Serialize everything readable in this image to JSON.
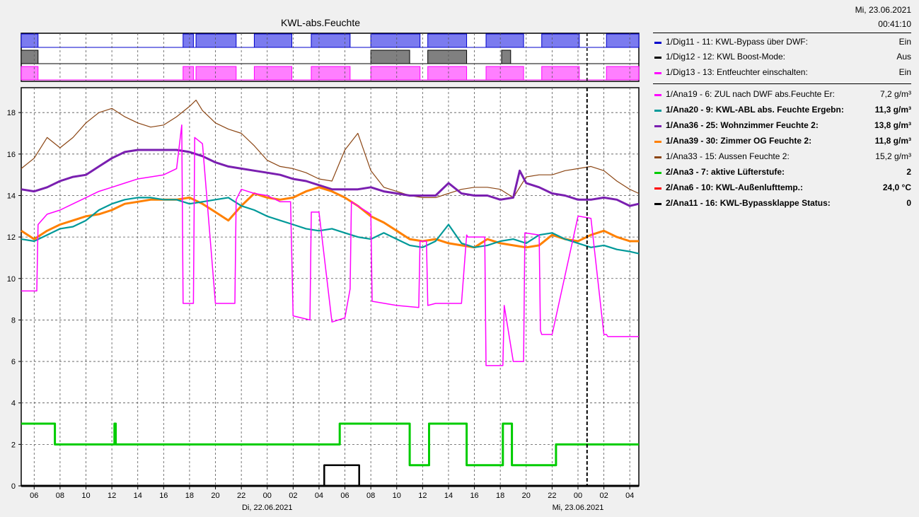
{
  "header": {
    "date": "Mi, 23.06.2021",
    "time": "00:41:10"
  },
  "chart_title": "KWL-abs.Feuchte",
  "colors": {
    "bypass": "#0000cc",
    "boost": "#000000",
    "entf": "#ff00ff",
    "zul": "#ff00ff",
    "abl": "#009999",
    "wohn": "#7a1fb0",
    "og": "#ff8000",
    "aussen": "#8b4513",
    "luefter": "#00cc00",
    "aussentemp": "#ff0000",
    "klappe": "#000000"
  },
  "legend": [
    {
      "label": "1/Dig11 - 11: KWL-Bypass über DWF:",
      "value": "Ein",
      "color": "#0000cc",
      "bold": false
    },
    {
      "label": "1/Dig12 - 12: KWL Boost-Mode:",
      "value": "Aus",
      "color": "#000000",
      "bold": false
    },
    {
      "label": "1/Dig13 - 13: Entfeuchter einschalten:",
      "value": "Ein",
      "color": "#ff00ff",
      "bold": false
    },
    {
      "label": "1/Ana19 - 6: ZUL nach DWF abs.Feuchte Er:",
      "value": "7,2 g/m³",
      "color": "#ff00ff",
      "bold": false
    },
    {
      "label": "1/Ana20 - 9: KWL-ABL abs. Feuchte Ergebn:",
      "value": "11,3 g/m³",
      "color": "#009999",
      "bold": true
    },
    {
      "label": "1/Ana36 - 25: Wohnzimmer Feuchte 2:",
      "value": "13,8 g/m³",
      "color": "#7a1fb0",
      "bold": true
    },
    {
      "label": "1/Ana39 - 30: Zimmer OG Feuchte 2:",
      "value": "11,8 g/m³",
      "color": "#ff8000",
      "bold": true
    },
    {
      "label": "1/Ana33 - 15: Aussen Feuchte 2:",
      "value": "15,2 g/m³",
      "color": "#8b4513",
      "bold": false
    },
    {
      "label": "2/Ana3 - 7: aktive Lüfterstufe:",
      "value": "2",
      "color": "#00cc00",
      "bold": true
    },
    {
      "label": "2/Ana6 - 10: KWL-Außenlufttemp.:",
      "value": "24,0 °C",
      "color": "#ff0000",
      "bold": true
    },
    {
      "label": "2/Ana11 - 16: KWL-Bypassklappe Status:",
      "value": "0",
      "color": "#000000",
      "bold": true
    }
  ],
  "chart_data": {
    "type": "line",
    "title": "KWL-abs.Feuchte",
    "x_unit": "hours since 21.06.2021 05:00",
    "xlim": [
      0,
      47.7
    ],
    "ylim": [
      0,
      19.2
    ],
    "yticks": [
      0,
      2,
      4,
      6,
      8,
      10,
      12,
      14,
      16,
      18
    ],
    "xtick_labels": [
      "06",
      "08",
      "10",
      "12",
      "14",
      "16",
      "18",
      "20",
      "22",
      "00",
      "02",
      "04",
      "06",
      "08",
      "10",
      "12",
      "14",
      "16",
      "18",
      "20",
      "22",
      "00",
      "02",
      "04"
    ],
    "date_labels": [
      {
        "x": 19,
        "text": "Di, 22.06.2021"
      },
      {
        "x": 43,
        "text": "Mi, 23.06.2021"
      }
    ],
    "now_marker_x": 43.7,
    "digital_series": [
      {
        "name": "1/Dig11 - 11: KWL-Bypass über DWF",
        "on_intervals": [
          [
            0,
            1.3
          ],
          [
            12.5,
            13.3
          ],
          [
            13.5,
            16.6
          ],
          [
            18,
            20.9
          ],
          [
            22.4,
            25.4
          ],
          [
            27,
            30.8
          ],
          [
            31.4,
            34.4
          ],
          [
            35.9,
            38.8
          ],
          [
            40.2,
            43.1
          ],
          [
            45.2,
            47.7
          ]
        ]
      },
      {
        "name": "1/Dig12 - 12: KWL Boost-Mode",
        "on_intervals": [
          [
            0,
            1.3
          ],
          [
            27,
            30
          ],
          [
            31.4,
            34.4
          ],
          [
            37.1,
            37.8
          ]
        ]
      },
      {
        "name": "1/Dig13 - 13: Entfeuchter einschalten",
        "on_intervals": [
          [
            0,
            1.3
          ],
          [
            12.5,
            13.3
          ],
          [
            13.5,
            16.6
          ],
          [
            18,
            20.9
          ],
          [
            22.4,
            25.4
          ],
          [
            27,
            30.8
          ],
          [
            31.4,
            34.4
          ],
          [
            35.9,
            38.8
          ],
          [
            40.2,
            43.1
          ],
          [
            45.2,
            47.7
          ]
        ]
      }
    ],
    "series": [
      {
        "name": "1/Ana33 - 15: Aussen Feuchte 2",
        "x": [
          0,
          1,
          2,
          3,
          4,
          5,
          6,
          7,
          8,
          9,
          10,
          11,
          12,
          13,
          13.5,
          14,
          15,
          16,
          17,
          18,
          19,
          20,
          21,
          22,
          23,
          24,
          25,
          26,
          27,
          28,
          29,
          30,
          31,
          32,
          33,
          34,
          35,
          36,
          37,
          38,
          39,
          40,
          41,
          42,
          43,
          44,
          45,
          46,
          47,
          47.7
        ],
        "y": [
          15.3,
          15.8,
          16.8,
          16.3,
          16.8,
          17.5,
          18,
          18.2,
          17.8,
          17.5,
          17.3,
          17.4,
          17.8,
          18.3,
          18.6,
          18.1,
          17.5,
          17.2,
          17,
          16.4,
          15.7,
          15.4,
          15.3,
          15.1,
          14.8,
          14.7,
          16.2,
          17,
          15.2,
          14.4,
          14.2,
          14,
          13.9,
          13.9,
          14.1,
          14.3,
          14.4,
          14.4,
          14.3,
          13.9,
          14.9,
          15,
          15,
          15.2,
          15.3,
          15.4,
          15.2,
          14.7,
          14.3,
          14.1
        ]
      },
      {
        "name": "1/Ana36 - 25: Wohnzimmer Feuchte 2",
        "x": [
          0,
          1,
          2,
          3,
          4,
          5,
          6,
          7,
          8,
          9,
          10,
          11,
          12,
          13,
          14,
          15,
          16,
          17,
          18,
          19,
          20,
          21,
          22,
          23,
          24,
          25,
          26,
          27,
          28,
          29,
          30,
          31,
          32,
          33,
          34,
          35,
          36,
          37,
          38,
          38.5,
          39,
          40,
          41,
          42,
          43,
          44,
          45,
          46,
          47,
          47.7
        ],
        "y": [
          14.3,
          14.2,
          14.4,
          14.7,
          14.9,
          15,
          15.4,
          15.8,
          16.1,
          16.2,
          16.2,
          16.2,
          16.2,
          16.1,
          15.9,
          15.6,
          15.4,
          15.3,
          15.2,
          15.1,
          15,
          14.8,
          14.7,
          14.5,
          14.3,
          14.3,
          14.3,
          14.4,
          14.2,
          14.1,
          14,
          14,
          14,
          14.6,
          14.1,
          14,
          14,
          13.8,
          13.9,
          15.2,
          14.6,
          14.4,
          14.1,
          14,
          13.8,
          13.8,
          13.9,
          13.8,
          13.5,
          13.6
        ]
      },
      {
        "name": "1/Ana39 - 30: Zimmer OG Feuchte 2",
        "x": [
          0,
          1,
          2,
          3,
          4,
          5,
          6,
          7,
          8,
          9,
          10,
          11,
          12,
          13,
          14,
          15,
          16,
          17,
          18,
          19,
          20,
          21,
          22,
          23,
          24,
          25,
          26,
          27,
          28,
          29,
          30,
          31,
          32,
          33,
          34,
          35,
          36,
          37,
          38,
          39,
          40,
          41,
          42,
          43,
          44,
          45,
          46,
          47,
          47.7
        ],
        "y": [
          12.3,
          11.9,
          12.3,
          12.6,
          12.8,
          13,
          13.1,
          13.3,
          13.6,
          13.7,
          13.8,
          13.8,
          13.8,
          13.9,
          13.6,
          13.2,
          12.8,
          13.5,
          14.1,
          13.9,
          13.8,
          13.9,
          14.2,
          14.4,
          14.2,
          13.9,
          13.5,
          13,
          12.7,
          12.3,
          11.9,
          11.8,
          11.9,
          11.7,
          11.6,
          11.5,
          11.9,
          11.7,
          11.6,
          11.5,
          11.6,
          12.1,
          11.9,
          11.8,
          12.1,
          12.3,
          12,
          11.8,
          11.8
        ]
      },
      {
        "name": "1/Ana20 - 9: KWL-ABL abs. Feuchte Ergebn",
        "x": [
          0,
          1,
          2,
          3,
          4,
          5,
          6,
          7,
          8,
          9,
          10,
          11,
          12,
          13,
          14,
          15,
          16,
          17,
          18,
          19,
          20,
          21,
          22,
          23,
          24,
          25,
          26,
          27,
          28,
          29,
          30,
          31,
          32,
          33,
          34,
          35,
          36,
          37,
          38,
          39,
          40,
          41,
          42,
          43,
          44,
          45,
          46,
          47,
          47.7
        ],
        "y": [
          11.9,
          11.8,
          12.1,
          12.4,
          12.5,
          12.8,
          13.3,
          13.6,
          13.8,
          13.9,
          13.9,
          13.8,
          13.8,
          13.6,
          13.7,
          13.8,
          13.9,
          13.5,
          13.3,
          13,
          12.8,
          12.6,
          12.4,
          12.3,
          12.4,
          12.2,
          12,
          11.9,
          12.2,
          11.9,
          11.6,
          11.5,
          11.8,
          12.6,
          11.7,
          11.5,
          11.6,
          11.8,
          11.9,
          11.7,
          12.1,
          12.2,
          11.9,
          11.7,
          11.5,
          11.6,
          11.4,
          11.3,
          11.2
        ]
      },
      {
        "name": "1/Ana19 - 6: ZUL nach DWF abs.Feuchte Er",
        "x": [
          0,
          1.2,
          1.3,
          2,
          3,
          4,
          5,
          6,
          7,
          8,
          9,
          10,
          11,
          12,
          12.4,
          12.5,
          13.3,
          13.4,
          14,
          15,
          16.5,
          16.6,
          17,
          18,
          18,
          19,
          20,
          20.8,
          21,
          22.3,
          22.4,
          23,
          24,
          25,
          25.4,
          25.5,
          26,
          27,
          27.1,
          29,
          30.7,
          30.8,
          31.3,
          31.4,
          32,
          34,
          34.4,
          34.5,
          35,
          35.8,
          35.9,
          36,
          37.2,
          37.3,
          38,
          38.8,
          38.9,
          40,
          40.1,
          40.2,
          41,
          43,
          43.1,
          44,
          45,
          45.2,
          45.3,
          47.7
        ],
        "y": [
          9.4,
          9.4,
          12.6,
          13.1,
          13.3,
          13.6,
          13.9,
          14.2,
          14.4,
          14.6,
          14.8,
          14.9,
          15,
          15.3,
          17.4,
          8.8,
          8.8,
          16.8,
          16.5,
          8.8,
          8.8,
          13.8,
          14.3,
          14.1,
          14.1,
          14.0,
          13.7,
          13.7,
          8.2,
          8.0,
          13.2,
          13.2,
          7.9,
          8.1,
          9.5,
          13.7,
          13.5,
          13.1,
          8.9,
          8.7,
          8.6,
          11.8,
          11.8,
          8.7,
          8.8,
          8.8,
          12.1,
          12,
          12,
          12,
          5.8,
          5.8,
          5.8,
          8.7,
          6.0,
          6.0,
          12.2,
          12.1,
          7.5,
          7.3,
          7.3,
          13.0,
          13.0,
          12.9,
          7.3,
          7.3,
          7.2,
          7.2
        ]
      },
      {
        "name": "2/Ana3 - 7: aktive Lüfterstufe",
        "x": [
          0,
          2.6,
          2.6,
          7.2,
          7.2,
          7.3,
          7.3,
          24.6,
          24.6,
          30,
          30,
          31.5,
          31.5,
          34.4,
          34.4,
          37.2,
          37.2,
          37.9,
          37.9,
          41.3,
          41.3,
          47.7
        ],
        "y": [
          3,
          3,
          2,
          2,
          3,
          3,
          2,
          2,
          3,
          3,
          1,
          1,
          3,
          3,
          1,
          1,
          3,
          3,
          1,
          1,
          2,
          2
        ]
      },
      {
        "name": "2/Ana11 - 16: KWL-Bypassklappe Status",
        "x": [
          0,
          23.4,
          23.4,
          26.1,
          26.1,
          47.7
        ],
        "y": [
          0,
          0,
          1,
          1,
          0,
          0
        ]
      },
      {
        "name": "2/Ana6 - 10: KWL-Außenlufttemp.",
        "x": [],
        "y": []
      }
    ]
  }
}
